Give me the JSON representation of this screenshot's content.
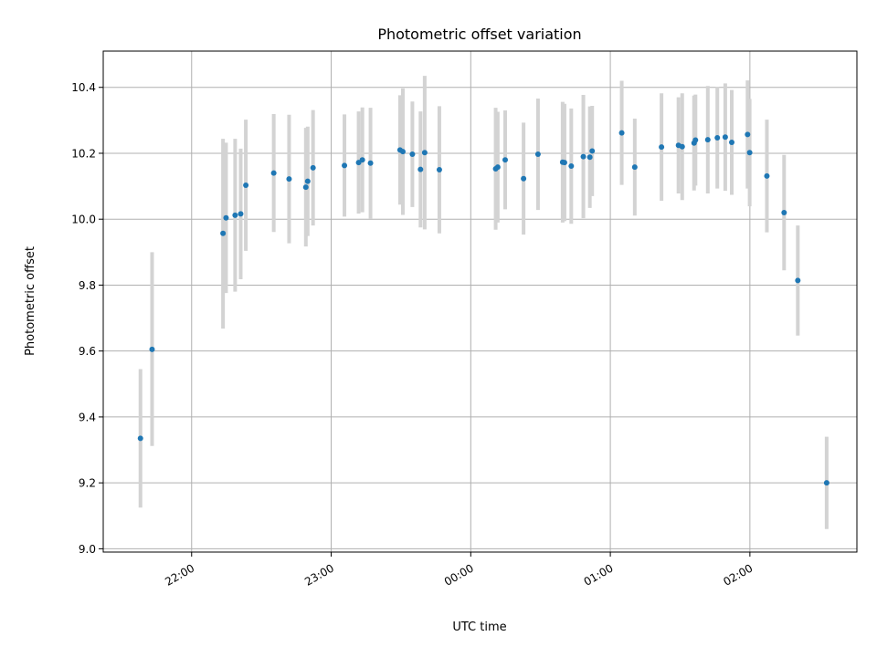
{
  "chart_data": {
    "type": "scatter",
    "title": "Photometric offset variation",
    "xlabel": "UTC time",
    "ylabel": "Photometric offset",
    "x_axis": {
      "unit": "minutes relative to 00:00 UTC",
      "range": [
        -158,
        166
      ],
      "tick_values": [
        -120,
        -60,
        0,
        60,
        120
      ],
      "tick_labels": [
        "22:00",
        "23:00",
        "00:00",
        "01:00",
        "02:00"
      ]
    },
    "y_axis": {
      "range": [
        8.99,
        10.51
      ],
      "tick_values": [
        9.0,
        9.2,
        9.4,
        9.6,
        9.8,
        10.0,
        10.2,
        10.4
      ],
      "tick_labels": [
        "9.0",
        "9.2",
        "9.4",
        "9.6",
        "9.8",
        "10.0",
        "10.2",
        "10.4"
      ]
    },
    "grid": true,
    "legend": "none",
    "colors": {
      "point": "#1f77b4",
      "errorbar": "#d3d3d3",
      "grid": "#b0b0b0"
    },
    "points": [
      {
        "x": -142,
        "y": 9.335,
        "lo": 9.125,
        "hi": 9.545
      },
      {
        "x": -137,
        "y": 9.605,
        "lo": 9.312,
        "hi": 9.9
      },
      {
        "x": -106.5,
        "y": 9.957,
        "lo": 9.668,
        "hi": 10.244
      },
      {
        "x": -105.2,
        "y": 10.004,
        "lo": 9.776,
        "hi": 10.232
      },
      {
        "x": -101.3,
        "y": 10.012,
        "lo": 9.78,
        "hi": 10.244
      },
      {
        "x": -98.9,
        "y": 10.016,
        "lo": 9.818,
        "hi": 10.214
      },
      {
        "x": -96.7,
        "y": 10.103,
        "lo": 9.904,
        "hi": 10.302
      },
      {
        "x": -84.7,
        "y": 10.14,
        "lo": 9.961,
        "hi": 10.319
      },
      {
        "x": -78.1,
        "y": 10.122,
        "lo": 9.927,
        "hi": 10.317
      },
      {
        "x": -70.9,
        "y": 10.097,
        "lo": 9.917,
        "hi": 10.277
      },
      {
        "x": -70.1,
        "y": 10.115,
        "lo": 9.949,
        "hi": 10.281
      },
      {
        "x": -67.8,
        "y": 10.156,
        "lo": 9.981,
        "hi": 10.331
      },
      {
        "x": -54.3,
        "y": 10.163,
        "lo": 10.008,
        "hi": 10.318
      },
      {
        "x": -48.2,
        "y": 10.172,
        "lo": 10.017,
        "hi": 10.327
      },
      {
        "x": -46.6,
        "y": 10.18,
        "lo": 10.021,
        "hi": 10.339
      },
      {
        "x": -43.1,
        "y": 10.17,
        "lo": 10.002,
        "hi": 10.338
      },
      {
        "x": -30.4,
        "y": 10.21,
        "lo": 10.044,
        "hi": 10.376
      },
      {
        "x": -29.2,
        "y": 10.205,
        "lo": 10.013,
        "hi": 10.397
      },
      {
        "x": -25.1,
        "y": 10.197,
        "lo": 10.037,
        "hi": 10.357
      },
      {
        "x": -21.6,
        "y": 10.151,
        "lo": 9.975,
        "hi": 10.327
      },
      {
        "x": -19.8,
        "y": 10.202,
        "lo": 9.969,
        "hi": 10.435
      },
      {
        "x": -13.5,
        "y": 10.15,
        "lo": 9.957,
        "hi": 10.343
      },
      {
        "x": 10.7,
        "y": 10.153,
        "lo": 9.968,
        "hi": 10.338
      },
      {
        "x": 11.6,
        "y": 10.158,
        "lo": 9.99,
        "hi": 10.326
      },
      {
        "x": 14.8,
        "y": 10.18,
        "lo": 10.03,
        "hi": 10.33
      },
      {
        "x": 22.7,
        "y": 10.123,
        "lo": 9.953,
        "hi": 10.293
      },
      {
        "x": 28.9,
        "y": 10.197,
        "lo": 10.028,
        "hi": 10.366
      },
      {
        "x": 39.5,
        "y": 10.173,
        "lo": 9.99,
        "hi": 10.356
      },
      {
        "x": 40.3,
        "y": 10.172,
        "lo": 9.994,
        "hi": 10.35
      },
      {
        "x": 43.2,
        "y": 10.161,
        "lo": 9.986,
        "hi": 10.336
      },
      {
        "x": 48.4,
        "y": 10.19,
        "lo": 10.003,
        "hi": 10.377
      },
      {
        "x": 51.2,
        "y": 10.188,
        "lo": 10.034,
        "hi": 10.342
      },
      {
        "x": 52.2,
        "y": 10.207,
        "lo": 10.07,
        "hi": 10.344
      },
      {
        "x": 64.9,
        "y": 10.262,
        "lo": 10.104,
        "hi": 10.42
      },
      {
        "x": 70.5,
        "y": 10.158,
        "lo": 10.011,
        "hi": 10.305
      },
      {
        "x": 82.0,
        "y": 10.219,
        "lo": 10.056,
        "hi": 10.382
      },
      {
        "x": 89.3,
        "y": 10.224,
        "lo": 10.078,
        "hi": 10.37
      },
      {
        "x": 90.9,
        "y": 10.22,
        "lo": 10.058,
        "hi": 10.382
      },
      {
        "x": 96.0,
        "y": 10.231,
        "lo": 10.087,
        "hi": 10.375
      },
      {
        "x": 96.6,
        "y": 10.24,
        "lo": 10.102,
        "hi": 10.378
      },
      {
        "x": 101.9,
        "y": 10.241,
        "lo": 10.078,
        "hi": 10.404
      },
      {
        "x": 106.0,
        "y": 10.247,
        "lo": 10.093,
        "hi": 10.401
      },
      {
        "x": 109.4,
        "y": 10.249,
        "lo": 10.086,
        "hi": 10.412
      },
      {
        "x": 112.2,
        "y": 10.233,
        "lo": 10.074,
        "hi": 10.392
      },
      {
        "x": 119.0,
        "y": 10.257,
        "lo": 10.093,
        "hi": 10.421
      },
      {
        "x": 119.9,
        "y": 10.202,
        "lo": 10.039,
        "hi": 10.365
      },
      {
        "x": 127.3,
        "y": 10.131,
        "lo": 9.96,
        "hi": 10.302
      },
      {
        "x": 134.7,
        "y": 10.02,
        "lo": 9.845,
        "hi": 10.195
      },
      {
        "x": 140.6,
        "y": 9.814,
        "lo": 9.647,
        "hi": 9.981
      },
      {
        "x": 153.0,
        "y": 9.2,
        "lo": 9.06,
        "hi": 9.34
      }
    ]
  }
}
